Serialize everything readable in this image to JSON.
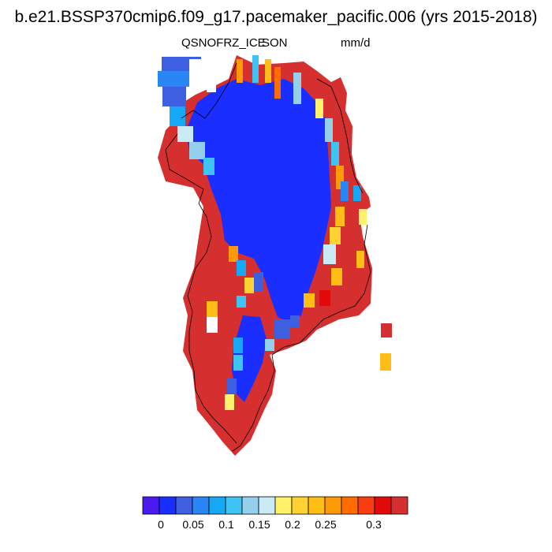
{
  "header": {
    "title": "b.e21.BSSP370cmip6.f09_g17.pacemaker_pacific.006 (yrs 2015-2018)",
    "variable": "QSNOFRZ_ICE",
    "season": "SON",
    "units": "mm/d"
  },
  "map": {
    "region": "Greenland",
    "field": "QSNOFRZ_ICE",
    "dominant_colors": {
      "interior": "#1a2eff",
      "coastal_high": "#d62f2f"
    }
  },
  "colorbar": {
    "colors": [
      "#4b1aef",
      "#1a2eff",
      "#3e60e0",
      "#2a86f5",
      "#16a8f5",
      "#3dc4f5",
      "#94cfec",
      "#c8ebf5",
      "#fff16a",
      "#ffd233",
      "#ffbd16",
      "#ff9a06",
      "#ff6d00",
      "#f93c10",
      "#e20a0a",
      "#d62f2f"
    ],
    "tick_labels": [
      "0",
      "0.05",
      "0.1",
      "0.15",
      "0.2",
      "0.25",
      "0.3"
    ]
  }
}
